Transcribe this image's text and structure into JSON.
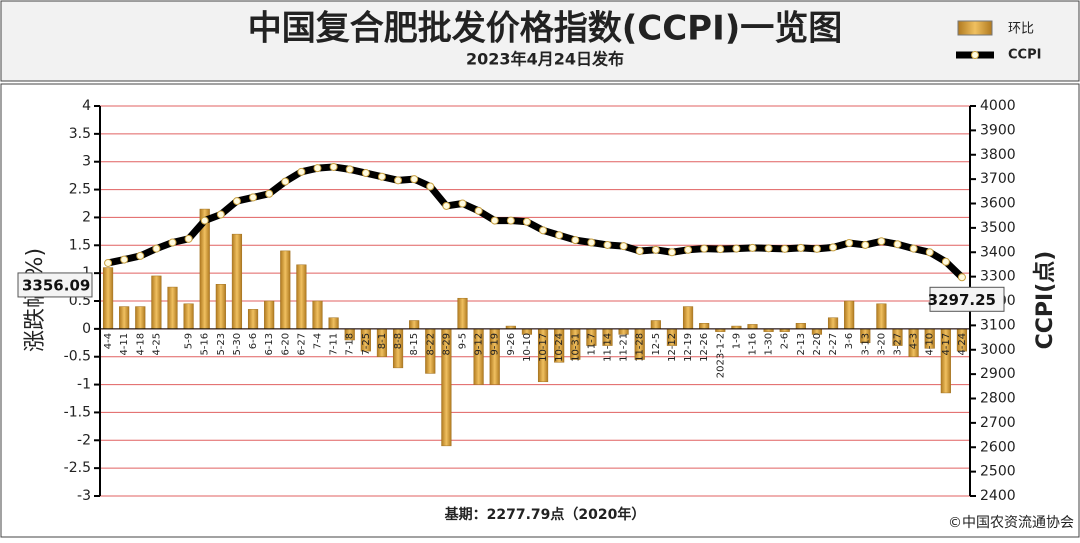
{
  "chart_data": {
    "type": "bar-line",
    "title": "中国复合肥批发价格指数(CCPI)一览图",
    "subtitle": "2023年4月24日发布",
    "y_label": "涨跌幅(%)",
    "y2_label": "CCPI(点)",
    "base_note": "基期：2277.79点（2020年）",
    "source": "©中国农资流通协会",
    "categories": [
      "4-4",
      "4-11",
      "4-18",
      "4-25",
      null,
      "5-9",
      "5-16",
      "5-23",
      "5-30",
      "6-6",
      "6-13",
      "6-20",
      "6-27",
      "7-4",
      "7-11",
      "7-18",
      "7-25",
      "8-1",
      "8-8",
      "8-15",
      "8-22",
      "8-29",
      "9-5",
      "9-12",
      "9-19",
      "9-26",
      "10-10",
      "10-17",
      "10-24",
      "10-31",
      "11-7",
      "11-14",
      "11-21",
      "11-28",
      "12-5",
      "12-12",
      "12-19",
      "12-26",
      "2023-1-2",
      "1-9",
      "1-16",
      "1-30",
      "2-6",
      "2-13",
      "2-20",
      "2-27",
      "3-6",
      "3-13",
      "3-20",
      "3-27",
      "4-3",
      "4-10",
      "4-17",
      "4-24"
    ],
    "series": [
      {
        "name": "环比",
        "color": "#d4a040",
        "values": [
          1.1,
          0.4,
          0.4,
          0.95,
          0.75,
          0.45,
          2.15,
          0.8,
          1.7,
          0.35,
          0.5,
          1.4,
          1.15,
          0.5,
          0.2,
          -0.2,
          -0.4,
          -0.5,
          -0.7,
          0.15,
          -0.8,
          -2.1,
          0.55,
          -1.0,
          -1.0,
          0.05,
          -0.1,
          -0.95,
          -0.6,
          -0.55,
          -0.3,
          -0.3,
          -0.1,
          -0.55,
          0.15,
          -0.3,
          0.4,
          0.1,
          -0.05,
          0.05,
          0.08,
          -0.05,
          -0.05,
          0.1,
          -0.1,
          0.2,
          0.5,
          -0.25,
          0.45,
          -0.3,
          -0.5,
          -0.35,
          -1.15,
          -0.4
        ]
      },
      {
        "name": "CCPI",
        "color": "#000000",
        "axis": "y2",
        "values": [
          3356.09,
          3370,
          3385,
          3415,
          3440,
          3455,
          3530,
          3555,
          3610,
          3625,
          3640,
          3690,
          3730,
          3745,
          3750,
          3740,
          3725,
          3710,
          3695,
          3700,
          3670,
          3590,
          3600,
          3570,
          3530,
          3530,
          3525,
          3490,
          3470,
          3450,
          3440,
          3430,
          3425,
          3405,
          3410,
          3400,
          3410,
          3415,
          3413,
          3415,
          3418,
          3416,
          3414,
          3418,
          3414,
          3420,
          3438,
          3430,
          3445,
          3433,
          3415,
          3400,
          3361,
          3297.25
        ]
      }
    ],
    "ylim": [
      -3,
      4
    ],
    "yticks": [
      -3,
      -2.5,
      -2,
      -1.5,
      -1,
      -0.5,
      0,
      0.5,
      1,
      1.5,
      2,
      2.5,
      3,
      3.5,
      4
    ],
    "y2lim": [
      2400,
      4000
    ],
    "y2ticks": [
      2400,
      2500,
      2600,
      2700,
      2800,
      2900,
      3000,
      3100,
      3200,
      3300,
      3400,
      3500,
      3600,
      3700,
      3800,
      3900,
      4000
    ],
    "grid": true,
    "grid_color": "#e06060"
  }
}
